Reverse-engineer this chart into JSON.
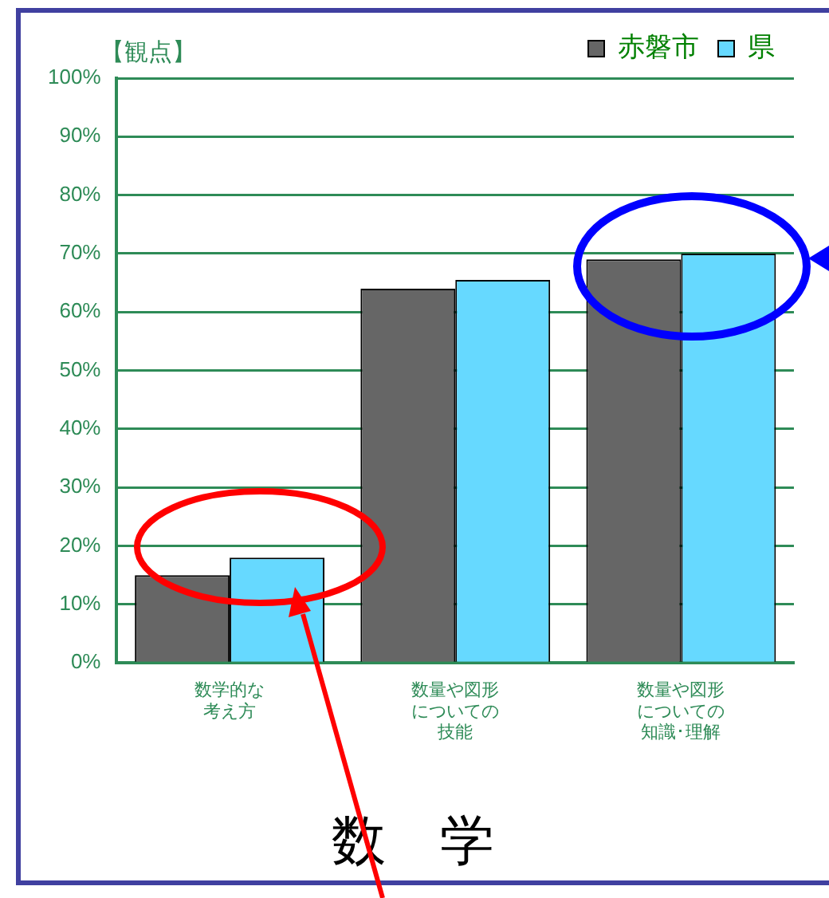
{
  "chart_data": {
    "type": "bar",
    "title": "数　学",
    "categories": [
      "数学的な考え方",
      "数量や図形についての技能",
      "数量や図形についての知識･理解"
    ],
    "series": [
      {
        "name": "赤磐市",
        "color": "#666666",
        "values": [
          15,
          64,
          69
        ]
      },
      {
        "name": "県",
        "color": "#66d9ff",
        "values": [
          18,
          65.5,
          70
        ]
      }
    ],
    "ylim": [
      0,
      100
    ],
    "yticks": [
      {
        "value": 0,
        "label": "0%"
      },
      {
        "value": 10,
        "label": "10%"
      },
      {
        "value": 20,
        "label": "20%"
      },
      {
        "value": 30,
        "label": "30%"
      },
      {
        "value": 40,
        "label": "40%"
      },
      {
        "value": 50,
        "label": "50%"
      },
      {
        "value": 60,
        "label": "60%"
      },
      {
        "value": 70,
        "label": "70%"
      },
      {
        "value": 80,
        "label": "80%"
      },
      {
        "value": 90,
        "label": "90%"
      },
      {
        "value": 100,
        "label": "100%"
      }
    ],
    "grid": "y",
    "legend": "top",
    "annotations": [
      "【観点】"
    ]
  }
}
